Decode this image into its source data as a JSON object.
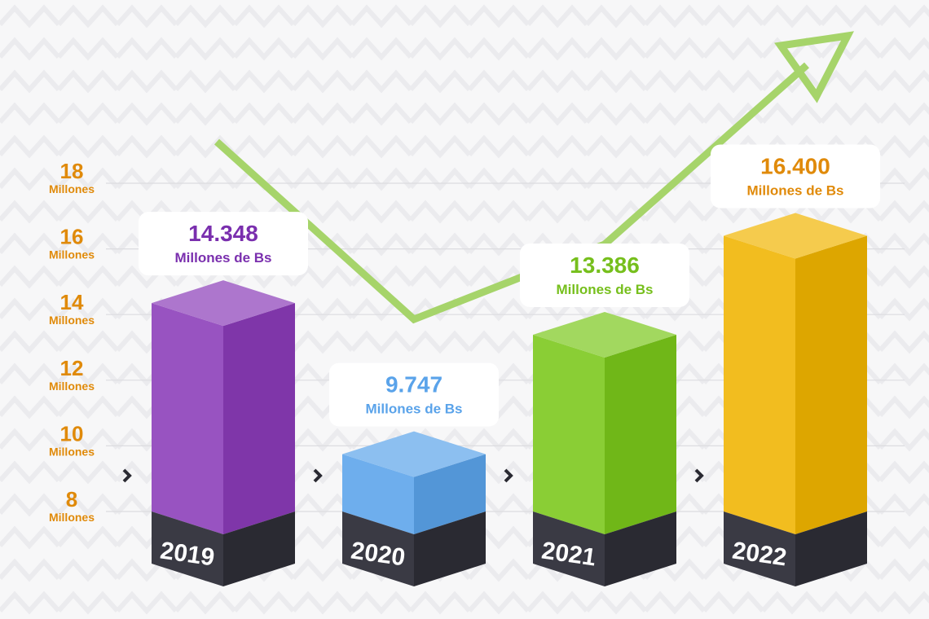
{
  "chart_data": {
    "type": "bar",
    "title": "",
    "categories": [
      "2019",
      "2020",
      "2021",
      "2022"
    ],
    "values": [
      14348,
      9747,
      13386,
      16400
    ],
    "value_labels": [
      "14.348",
      "9.747",
      "13.386",
      "16.400"
    ],
    "value_unit": "Millones de Bs",
    "yticks": [
      {
        "value": "8",
        "unit": "Millones"
      },
      {
        "value": "10",
        "unit": "Millones"
      },
      {
        "value": "12",
        "unit": "Millones"
      },
      {
        "value": "14",
        "unit": "Millones"
      },
      {
        "value": "16",
        "unit": "Millones"
      },
      {
        "value": "18",
        "unit": "Millones"
      }
    ],
    "ylim": [
      7000,
      19000
    ],
    "grid": true,
    "colors": [
      "#8a3bb8",
      "#5aa3ea",
      "#7ac71a",
      "#f0b400"
    ],
    "label_colors": [
      "#7a2fae",
      "#5aa3ea",
      "#76bf1c",
      "#e08a0a"
    ],
    "trend_arrow_color": "#a6d46a"
  }
}
